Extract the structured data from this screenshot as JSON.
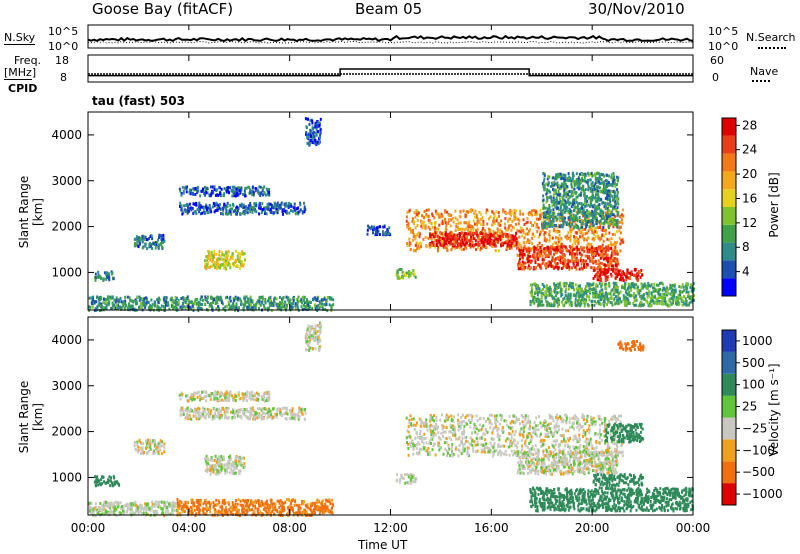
{
  "header": {
    "station": "Goose Bay (fitACF)",
    "beam": "Beam 05",
    "date": "30/Nov/2010"
  },
  "ancillary": {
    "noise_sky_label": "N.Sky",
    "noise_search_label": "N.Search",
    "noise_ticks": [
      "10^5",
      "10^0"
    ],
    "freq_label_line1": "Freq.",
    "freq_label_line2": "[MHz]",
    "freq_ticks": [
      "18",
      "8"
    ],
    "nave_label": "Nave",
    "nave_ticks": [
      "60",
      "0"
    ],
    "cpid_label": "CPID",
    "cpid_text": "tau (fast) 503"
  },
  "axes": {
    "xlabel": "Time UT",
    "xticks": [
      "00:00",
      "04:00",
      "08:00",
      "12:00",
      "16:00",
      "20:00",
      "00:00"
    ],
    "ylabel": "Slant Range [km]",
    "yticks": [
      "1000",
      "2000",
      "3000",
      "4000"
    ]
  },
  "colorbars": {
    "power": {
      "label": "Power [dB]",
      "ticks": [
        "4",
        "8",
        "12",
        "16",
        "20",
        "24",
        "28"
      ],
      "colors": [
        "#0000ff",
        "#1c4fb0",
        "#2f8a8a",
        "#3fa24a",
        "#7fc430",
        "#e6d21e",
        "#f3a81e",
        "#f07a18",
        "#e8411a",
        "#e00000"
      ]
    },
    "velocity": {
      "label": "Velocity [m s⁻¹]",
      "ticks": [
        "1000",
        "500",
        "100",
        "25",
        "−25",
        "−100",
        "−500",
        "−1000"
      ],
      "colors": [
        "#1f3bb3",
        "#2f6aa8",
        "#2f8a5a",
        "#62c43a",
        "#c8c8c0",
        "#f0a01e",
        "#f07010",
        "#e00000"
      ]
    }
  },
  "chart_data": {
    "type": "heatmap",
    "x_range": [
      "00:00",
      "24:00"
    ],
    "y_range_km": [
      180,
      4500
    ],
    "frequency_mhz": [
      {
        "start": "00:00",
        "end": "10:00",
        "value": 10
      },
      {
        "start": "10:00",
        "end": "17:30",
        "value": 13
      },
      {
        "start": "17:30",
        "end": "24:00",
        "value": 10
      }
    ],
    "power_db_regions": [
      {
        "t0": 0.0,
        "t1": 9.7,
        "r0": 200,
        "r1": 500,
        "db": 10
      },
      {
        "t0": 0.2,
        "t1": 1.0,
        "r0": 850,
        "r1": 1050,
        "db": 9
      },
      {
        "t0": 1.8,
        "t1": 3.0,
        "r0": 1550,
        "r1": 1850,
        "db": 8
      },
      {
        "t0": 3.6,
        "t1": 8.6,
        "r0": 2300,
        "r1": 2550,
        "db": 7
      },
      {
        "t0": 3.6,
        "t1": 7.2,
        "r0": 2700,
        "r1": 2900,
        "db": 7
      },
      {
        "t0": 4.6,
        "t1": 6.2,
        "r0": 1100,
        "r1": 1500,
        "db": 17
      },
      {
        "t0": 8.6,
        "t1": 9.2,
        "r0": 3800,
        "r1": 4400,
        "db": 6
      },
      {
        "t0": 11.0,
        "t1": 12.0,
        "r0": 1850,
        "r1": 2050,
        "db": 6
      },
      {
        "t0": 12.2,
        "t1": 13.0,
        "r0": 900,
        "r1": 1100,
        "db": 14
      },
      {
        "t0": 12.6,
        "t1": 21.2,
        "r0": 1500,
        "r1": 2400,
        "db": 22
      },
      {
        "t0": 13.5,
        "t1": 17.0,
        "r0": 1600,
        "r1": 1900,
        "db": 28
      },
      {
        "t0": 17.0,
        "t1": 21.0,
        "r0": 1100,
        "r1": 1600,
        "db": 26
      },
      {
        "t0": 20.0,
        "t1": 22.0,
        "r0": 850,
        "r1": 1100,
        "db": 28
      },
      {
        "t0": 17.5,
        "t1": 24.0,
        "r0": 300,
        "r1": 800,
        "db": 12
      },
      {
        "t0": 18.0,
        "t1": 21.0,
        "r0": 2000,
        "r1": 3200,
        "db": 10
      }
    ],
    "velocity_regions": [
      {
        "t0": 0.0,
        "t1": 3.5,
        "r0": 200,
        "r1": 500,
        "v": 10
      },
      {
        "t0": 3.5,
        "t1": 9.7,
        "r0": 200,
        "r1": 550,
        "v": -120
      },
      {
        "t0": 0.2,
        "t1": 1.2,
        "r0": 850,
        "r1": 1050,
        "v": 150
      },
      {
        "t0": 1.8,
        "t1": 3.0,
        "r0": 1550,
        "r1": 1850,
        "v": 0
      },
      {
        "t0": 3.6,
        "t1": 8.6,
        "r0": 2300,
        "r1": 2550,
        "v": 0
      },
      {
        "t0": 3.6,
        "t1": 7.2,
        "r0": 2700,
        "r1": 2900,
        "v": 0
      },
      {
        "t0": 4.6,
        "t1": 6.2,
        "r0": 1100,
        "r1": 1500,
        "v": 0
      },
      {
        "t0": 8.6,
        "t1": 9.2,
        "r0": 3800,
        "r1": 4400,
        "v": 0
      },
      {
        "t0": 12.2,
        "t1": 13.0,
        "r0": 900,
        "r1": 1100,
        "v": 0
      },
      {
        "t0": 12.6,
        "t1": 21.2,
        "r0": 1500,
        "r1": 2400,
        "v": 0
      },
      {
        "t0": 17.0,
        "t1": 21.0,
        "r0": 1100,
        "r1": 1600,
        "v": 0
      },
      {
        "t0": 20.0,
        "t1": 22.0,
        "r0": 850,
        "r1": 1100,
        "v": 150
      },
      {
        "t0": 17.5,
        "t1": 24.0,
        "r0": 300,
        "r1": 800,
        "v": 150
      },
      {
        "t0": 20.5,
        "t1": 22.0,
        "r0": 1800,
        "r1": 2200,
        "v": 150
      },
      {
        "t0": 21.0,
        "t1": 22.0,
        "r0": 3800,
        "r1": 4000,
        "v": -200
      }
    ]
  }
}
